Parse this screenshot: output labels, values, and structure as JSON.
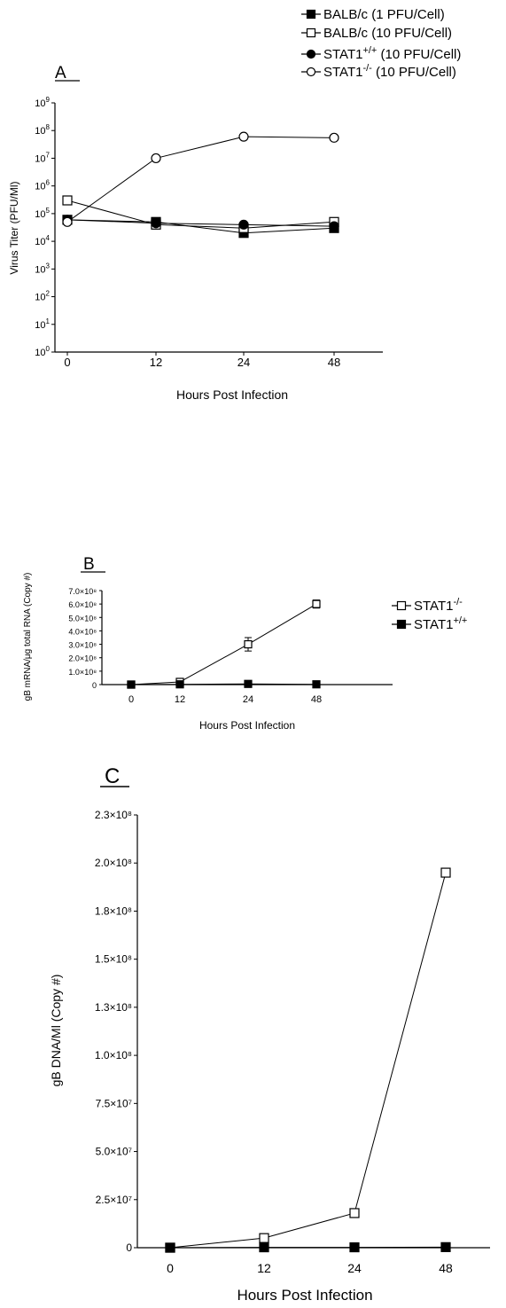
{
  "chart_data": [
    {
      "panel": "A",
      "type": "line",
      "log_y": true,
      "x": [
        0,
        12,
        24,
        48
      ],
      "xticks": [
        "0",
        "12",
        "24",
        "48"
      ],
      "xlabel": "Hours Post Infection",
      "ylabel": "Virus Titer (PFU/Ml)",
      "ylim": [
        1,
        1000000000
      ],
      "yticks": [
        {
          "base": "10",
          "exp": "0"
        },
        {
          "base": "10",
          "exp": "1"
        },
        {
          "base": "10",
          "exp": "2"
        },
        {
          "base": "10",
          "exp": "3"
        },
        {
          "base": "10",
          "exp": "4"
        },
        {
          "base": "10",
          "exp": "5"
        },
        {
          "base": "10",
          "exp": "6"
        },
        {
          "base": "10",
          "exp": "7"
        },
        {
          "base": "10",
          "exp": "8"
        },
        {
          "base": "10",
          "exp": "9"
        }
      ],
      "grid": false,
      "legend_position": "top-right",
      "series": [
        {
          "name": "BALB/c (1 PFU/Cell)",
          "name_main": "BALB/c",
          "name_sup": "",
          "name_rest": " (1 PFU/Cell)",
          "marker": "square",
          "fill": "filled",
          "values": [
            60000,
            50000,
            20000,
            30000
          ]
        },
        {
          "name": "BALB/c (10 PFU/Cell)",
          "name_main": "BALB/c",
          "name_sup": "",
          "name_rest": " (10 PFU/Cell)",
          "marker": "square",
          "fill": "open",
          "values": [
            300000,
            40000,
            30000,
            50000
          ]
        },
        {
          "name": "STAT1+/+ (10 PFU/Cell)",
          "name_main": "STAT1",
          "name_sup": "+/+",
          "name_rest": " (10 PFU/Cell)",
          "marker": "circle",
          "fill": "filled",
          "values": [
            60000,
            45000,
            40000,
            35000
          ]
        },
        {
          "name": "STAT1-/- (10 PFU/Cell)",
          "name_main": "STAT1",
          "name_sup": "-/-",
          "name_rest": " (10 PFU/Cell)",
          "marker": "circle",
          "fill": "open",
          "values": [
            50000,
            10000000,
            60000000,
            55000000
          ]
        }
      ]
    },
    {
      "panel": "B",
      "type": "line",
      "x": [
        0,
        12,
        24,
        48
      ],
      "xticks": [
        "0",
        "12",
        "24",
        "48"
      ],
      "xlabel": "Hours Post Infection",
      "ylabel": "gB mRNA/μg total RNA (Copy #)",
      "ylim": [
        0,
        700000000
      ],
      "yticks": [
        {
          "value": 0,
          "label": "0"
        },
        {
          "value": 100000000,
          "label": "1.0×10⁸"
        },
        {
          "value": 200000000,
          "label": "2.0×10⁸"
        },
        {
          "value": 300000000,
          "label": "3.0×10⁸"
        },
        {
          "value": 400000000,
          "label": "4.0×10⁸"
        },
        {
          "value": 500000000,
          "label": "5.0×10⁸"
        },
        {
          "value": 600000000,
          "label": "6.0×10⁸"
        },
        {
          "value": 700000000,
          "label": "7.0×10⁸"
        }
      ],
      "grid": false,
      "legend_position": "top-right",
      "series": [
        {
          "name": "STAT1-/-",
          "name_main": "STAT1",
          "name_sup": "-/-",
          "name_rest": "",
          "marker": "square",
          "fill": "open",
          "values": [
            0,
            20000000,
            300000000,
            600000000
          ],
          "errors": [
            0,
            0,
            50000000,
            30000000
          ]
        },
        {
          "name": "STAT1+/+",
          "name_main": "STAT1",
          "name_sup": "+/+",
          "name_rest": "",
          "marker": "square",
          "fill": "filled",
          "values": [
            0,
            2000000,
            5000000,
            2000000
          ],
          "errors": [
            0,
            0,
            0,
            0
          ]
        }
      ]
    },
    {
      "panel": "C",
      "type": "line",
      "x": [
        0,
        12,
        24,
        48
      ],
      "xticks": [
        "0",
        "12",
        "24",
        "48"
      ],
      "xlabel": "Hours Post Infection",
      "ylabel": "gB DNA/Ml (Copy #)",
      "ylim": [
        0,
        225000000
      ],
      "yticks": [
        {
          "value": 0,
          "label": "0"
        },
        {
          "value": 25000000,
          "label": "2.5×10⁷"
        },
        {
          "value": 50000000,
          "label": "5.0×10⁷"
        },
        {
          "value": 75000000,
          "label": "7.5×10⁷"
        },
        {
          "value": 100000000,
          "label": "1.0×10⁸"
        },
        {
          "value": 125000000,
          "label": "1.3×10⁸"
        },
        {
          "value": 150000000,
          "label": "1.5×10⁸"
        },
        {
          "value": 175000000,
          "label": "1.8×10⁸"
        },
        {
          "value": 200000000,
          "label": "2.0×10⁸"
        },
        {
          "value": 225000000,
          "label": "2.3×10⁸"
        }
      ],
      "grid": false,
      "series": [
        {
          "marker": "square",
          "fill": "open",
          "values": [
            0,
            5000000,
            18000000,
            195000000
          ]
        },
        {
          "marker": "square",
          "fill": "filled",
          "values": [
            0,
            200000,
            200000,
            300000
          ]
        }
      ]
    }
  ]
}
